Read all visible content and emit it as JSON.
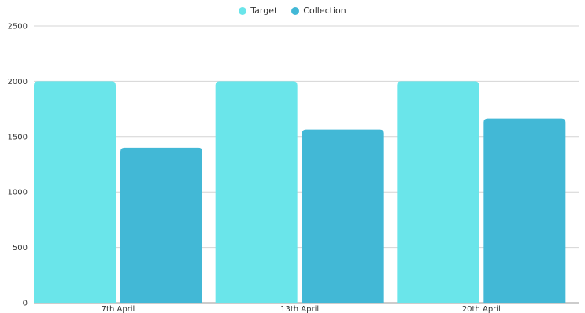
{
  "chart_data": {
    "type": "bar",
    "categories": [
      "7th April",
      "13th April",
      "20th April"
    ],
    "series": [
      {
        "name": "Target",
        "values": [
          2000,
          2000,
          2000
        ],
        "color": "#6ae5ea"
      },
      {
        "name": "Collection",
        "values": [
          1400,
          1565,
          1665
        ],
        "color": "#42b8d6"
      }
    ],
    "ylim": [
      0,
      2500
    ],
    "yticks": [
      0,
      500,
      1000,
      1500,
      2000,
      2500
    ],
    "grid": true,
    "legend_position": "top-center"
  }
}
